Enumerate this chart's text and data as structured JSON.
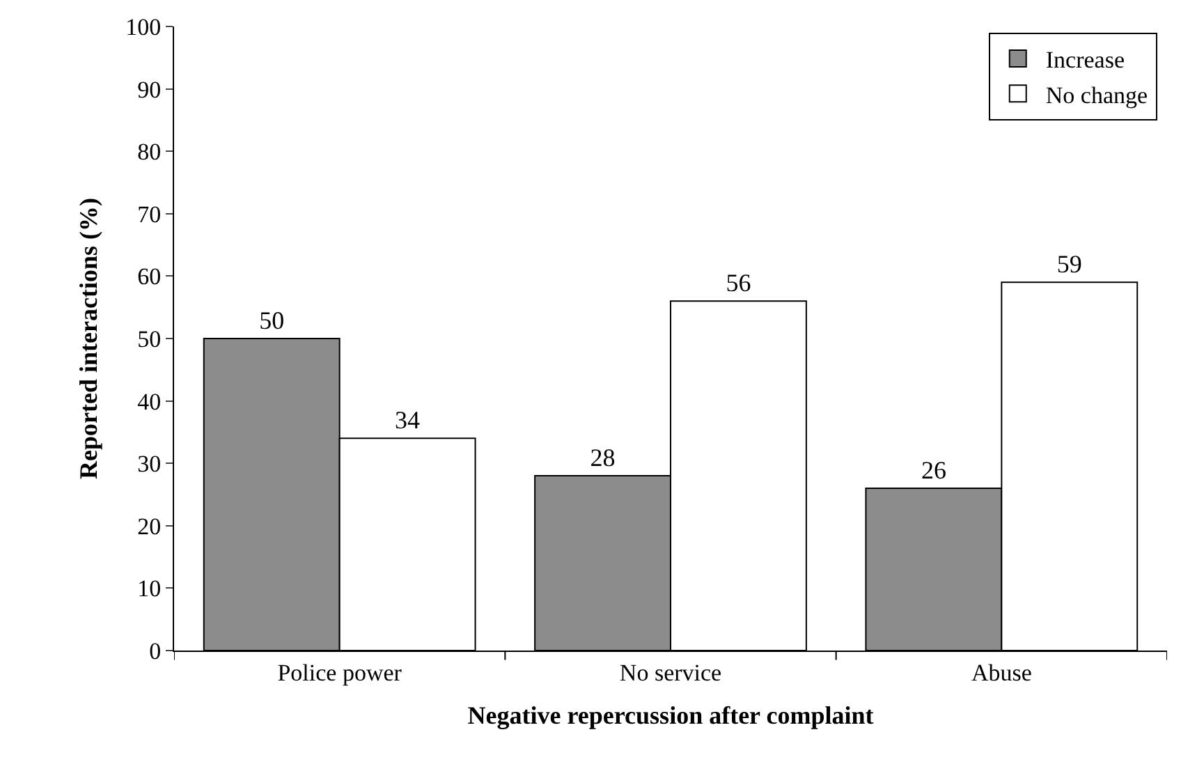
{
  "chart_data": {
    "type": "bar",
    "xlabel": "Negative repercussion after complaint",
    "ylabel": "Reported interactions (%)",
    "categories": [
      "Police power",
      "No service",
      "Abuse"
    ],
    "series": [
      {
        "name": "Increase",
        "color": "#8c8c8c",
        "values": [
          50,
          28,
          26
        ]
      },
      {
        "name": "No change",
        "color": "#ffffff",
        "values": [
          34,
          56,
          59
        ]
      }
    ],
    "ylim": [
      0,
      100
    ],
    "yticks": [
      0,
      10,
      20,
      30,
      40,
      50,
      60,
      70,
      80,
      90,
      100
    ],
    "data_labels": true,
    "legend": "top right"
  }
}
